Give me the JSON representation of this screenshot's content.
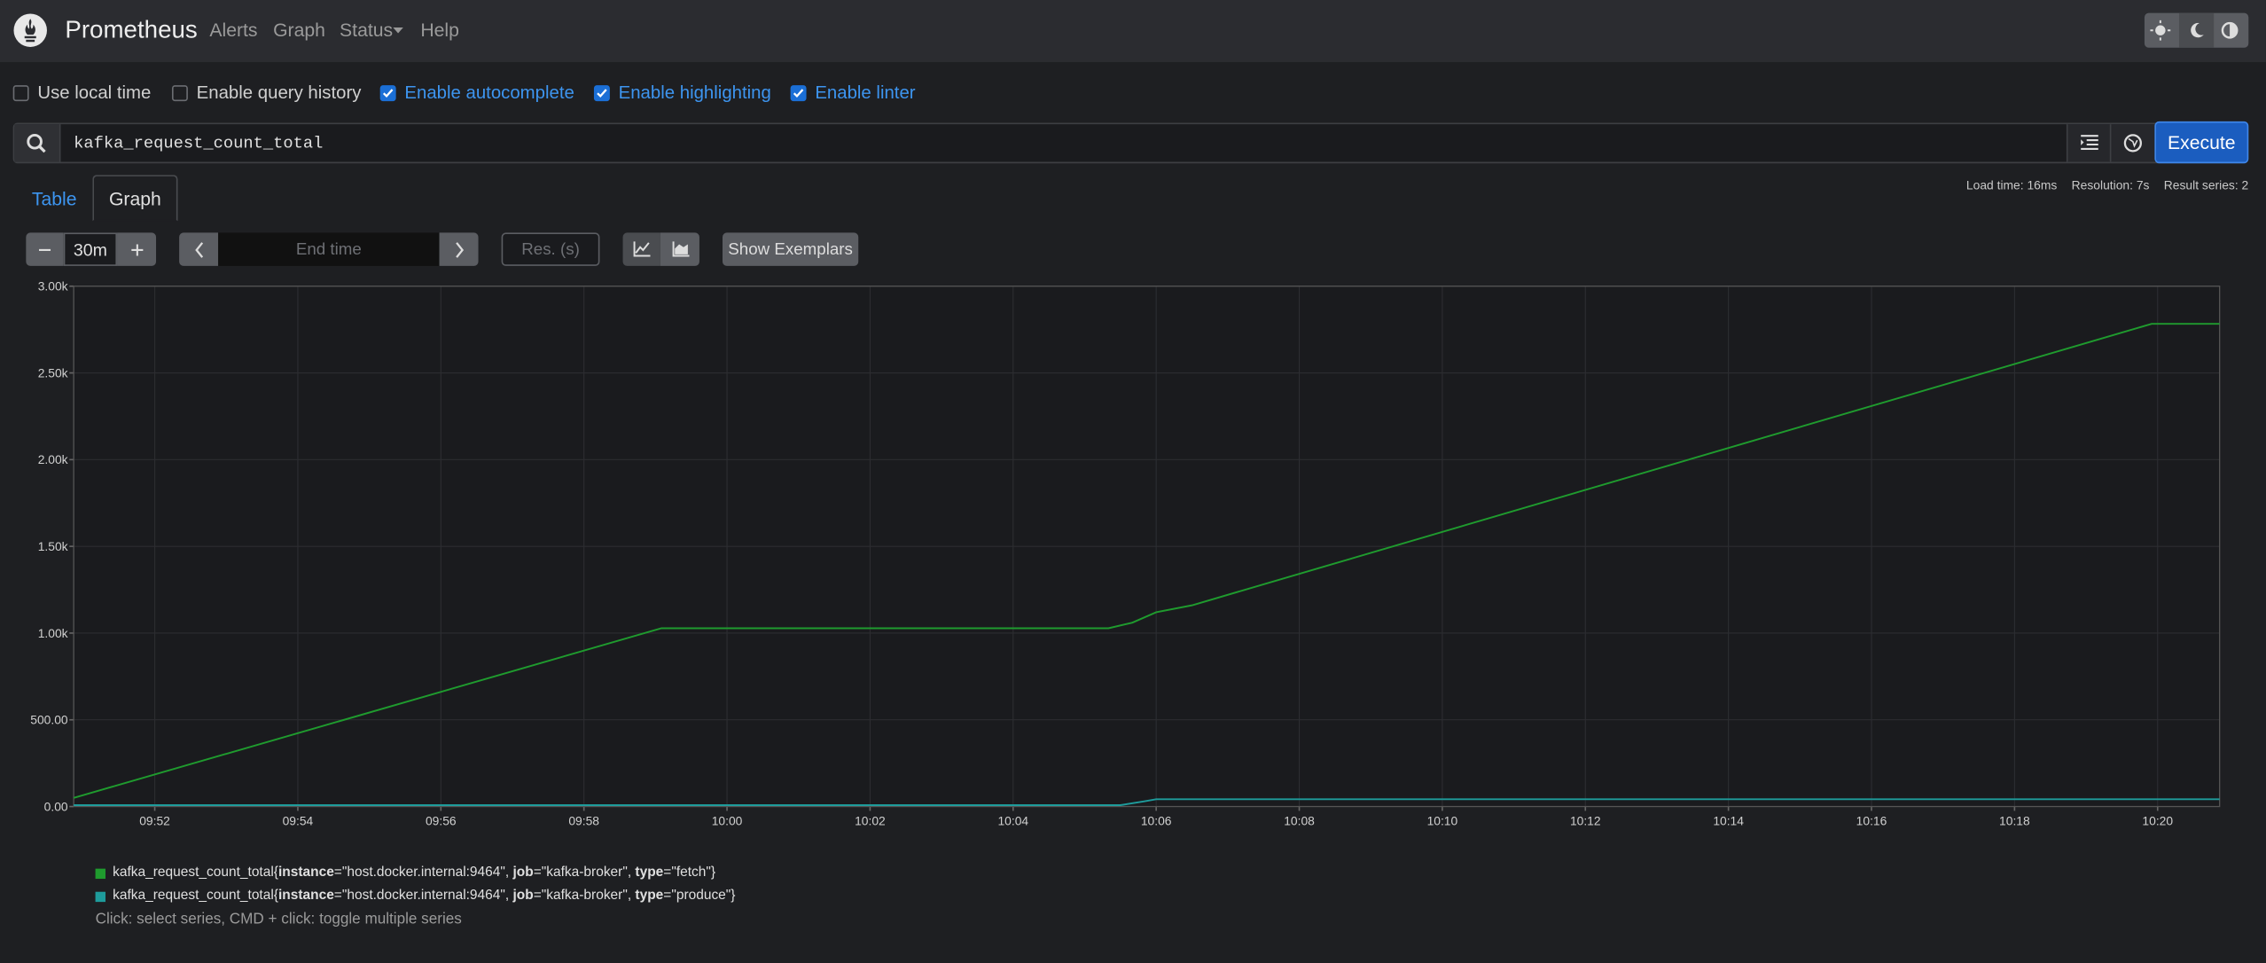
{
  "navbar": {
    "brand": "Prometheus",
    "links": [
      "Alerts",
      "Graph",
      "Status",
      "Help"
    ]
  },
  "options": [
    {
      "label": "Use local time",
      "checked": false
    },
    {
      "label": "Enable query history",
      "checked": false
    },
    {
      "label": "Enable autocomplete",
      "checked": true
    },
    {
      "label": "Enable highlighting",
      "checked": true
    },
    {
      "label": "Enable linter",
      "checked": true
    }
  ],
  "query": {
    "expression": "kafka_request_count_total",
    "execute": "Execute"
  },
  "tabs": [
    "Table",
    "Graph"
  ],
  "stats": [
    "Load time: 16ms",
    "Resolution: 7s",
    "Result series: 2"
  ],
  "controls": {
    "range": "30m",
    "end_time": "End time",
    "resolution": "Res. (s)",
    "exemplars": "Show Exemplars"
  },
  "chart_data": {
    "type": "line",
    "xlim": [
      "09:50:52",
      "10:20:52"
    ],
    "xticks": [
      "09:52",
      "09:54",
      "09:56",
      "09:58",
      "10:00",
      "10:02",
      "10:04",
      "10:06",
      "10:08",
      "10:10",
      "10:12",
      "10:14",
      "10:16",
      "10:18",
      "10:20"
    ],
    "ylim": [
      0,
      3000
    ],
    "yticks": [
      {
        "value": 0,
        "label": "0.00"
      },
      {
        "value": 500,
        "label": "500.00"
      },
      {
        "value": 1000,
        "label": "1.00k"
      },
      {
        "value": 1500,
        "label": "1.50k"
      },
      {
        "value": 2000,
        "label": "2.00k"
      },
      {
        "value": 2500,
        "label": "2.50k"
      },
      {
        "value": 3000,
        "label": "3.00k"
      }
    ],
    "grid": true,
    "series": [
      {
        "name": "kafka_request_count_total{instance=\"host.docker.internal:9464\", job=\"kafka-broker\", type=\"fetch\"}",
        "color": "#1f9b2e",
        "x": [
          "09:50:52",
          "09:59:05",
          "10:05:20",
          "10:05:40",
          "10:06:00",
          "10:06:30",
          "10:19:55",
          "10:20:52"
        ],
        "values": [
          50,
          1028,
          1028,
          1060,
          1120,
          1160,
          2783,
          2783
        ]
      },
      {
        "name": "kafka_request_count_total{instance=\"host.docker.internal:9464\", job=\"kafka-broker\", type=\"produce\"}",
        "color": "#1e9c9c",
        "x": [
          "09:50:52",
          "10:05:30",
          "10:05:50",
          "10:06:00",
          "10:20:52"
        ],
        "values": [
          8,
          8,
          30,
          42,
          42
        ]
      }
    ],
    "hint": "Click: select series, CMD + click: toggle multiple series"
  }
}
